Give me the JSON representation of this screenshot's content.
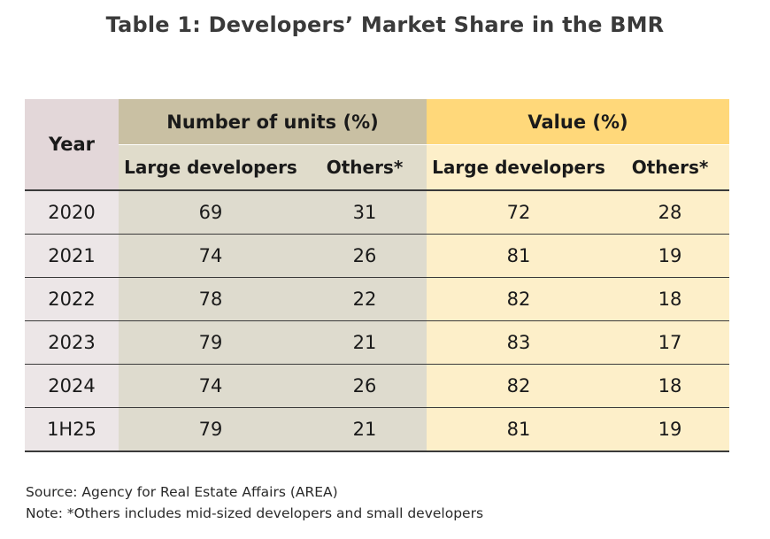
{
  "title": "Table 1: Developers’ Market Share in the BMR",
  "table": {
    "year_header": "Year",
    "units_header": "Number of units (%)",
    "value_header": "Value (%)",
    "sub_headers": {
      "units_large": "Large developers",
      "units_others": "Others*",
      "value_large": "Large developers",
      "value_others": "Others*"
    },
    "rows": [
      {
        "year": "2020",
        "units_large": "69",
        "units_others": "31",
        "value_large": "72",
        "value_others": "28"
      },
      {
        "year": "2021",
        "units_large": "74",
        "units_others": "26",
        "value_large": "81",
        "value_others": "19"
      },
      {
        "year": "2022",
        "units_large": "78",
        "units_others": "22",
        "value_large": "82",
        "value_others": "18"
      },
      {
        "year": "2023",
        "units_large": "79",
        "units_others": "21",
        "value_large": "83",
        "value_others": "17"
      },
      {
        "year": "2024",
        "units_large": "74",
        "units_others": "26",
        "value_large": "82",
        "value_others": "18"
      },
      {
        "year": "1H25",
        "units_large": "79",
        "units_others": "21",
        "value_large": "81",
        "value_others": "19"
      }
    ]
  },
  "source": "Source: Agency for Real Estate Affairs (AREA)",
  "note": "Note: *Others includes mid-sized developers and small developers",
  "colors": {
    "year_header_bg": "#e3d7d9",
    "units_header_bg": "#c9c0a3",
    "value_header_bg": "#ffd87a",
    "units_cell_bg": "#dedbce",
    "value_cell_bg": "#fdefc9"
  }
}
